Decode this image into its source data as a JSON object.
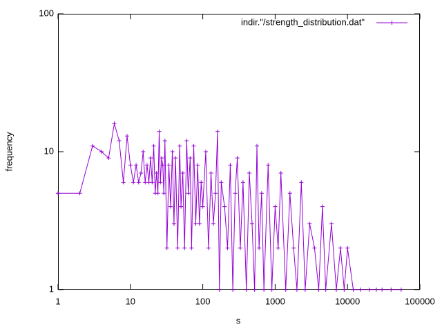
{
  "chart_data": {
    "type": "line",
    "xlabel": "s",
    "ylabel": "frequency",
    "xscale": "log",
    "yscale": "log",
    "xlim": [
      1,
      100000
    ],
    "ylim": [
      1,
      100
    ],
    "xticks": [
      1,
      10,
      100,
      1000,
      10000,
      100000
    ],
    "yticks": [
      1,
      10,
      100
    ],
    "legend": "top-right",
    "markers": true,
    "x": [
      1,
      2,
      3,
      4,
      5,
      6,
      7,
      8,
      9,
      10,
      11,
      12,
      13,
      14,
      15,
      16,
      17,
      18,
      19,
      20,
      21,
      22,
      23,
      24,
      25,
      26,
      27,
      28,
      29,
      30,
      32,
      34,
      36,
      38,
      40,
      42,
      45,
      48,
      50,
      53,
      56,
      60,
      63,
      67,
      70,
      75,
      80,
      85,
      90,
      95,
      100,
      110,
      120,
      130,
      140,
      150,
      160,
      170,
      180,
      200,
      220,
      240,
      260,
      280,
      300,
      330,
      360,
      400,
      440,
      480,
      520,
      560,
      600,
      650,
      700,
      800,
      900,
      1000,
      1100,
      1200,
      1400,
      1600,
      1800,
      2000,
      2300,
      2600,
      3000,
      3500,
      4000,
      4500,
      5000,
      6000,
      7000,
      8000,
      9000,
      10000,
      12000,
      15000,
      20000,
      25000,
      30000,
      40000,
      55000
    ],
    "series": [
      {
        "name": "indir.\"/strength_distribution.dat\"",
        "color": "#9400d3",
        "values": [
          5,
          5,
          11,
          10,
          9,
          16,
          12,
          6,
          13,
          8,
          6,
          8,
          6,
          7,
          10,
          6,
          8,
          6,
          9,
          6,
          11,
          5,
          7,
          5,
          14,
          6,
          9,
          8,
          5,
          12,
          2,
          8,
          4,
          10,
          3,
          9,
          2,
          11,
          4,
          7,
          2,
          12,
          5,
          9,
          2,
          11,
          3,
          8,
          3,
          6,
          4,
          10,
          2,
          7,
          3,
          5,
          14,
          1,
          6,
          4,
          2,
          8,
          1,
          5,
          9,
          2,
          6,
          1,
          7,
          3,
          1,
          11,
          2,
          5,
          1,
          8,
          1,
          4,
          2,
          7,
          1,
          5,
          2,
          1,
          6,
          1,
          3,
          2,
          1,
          4,
          1,
          3,
          1,
          2,
          1,
          2,
          1,
          1,
          1,
          1,
          1,
          1,
          1
        ]
      }
    ]
  }
}
